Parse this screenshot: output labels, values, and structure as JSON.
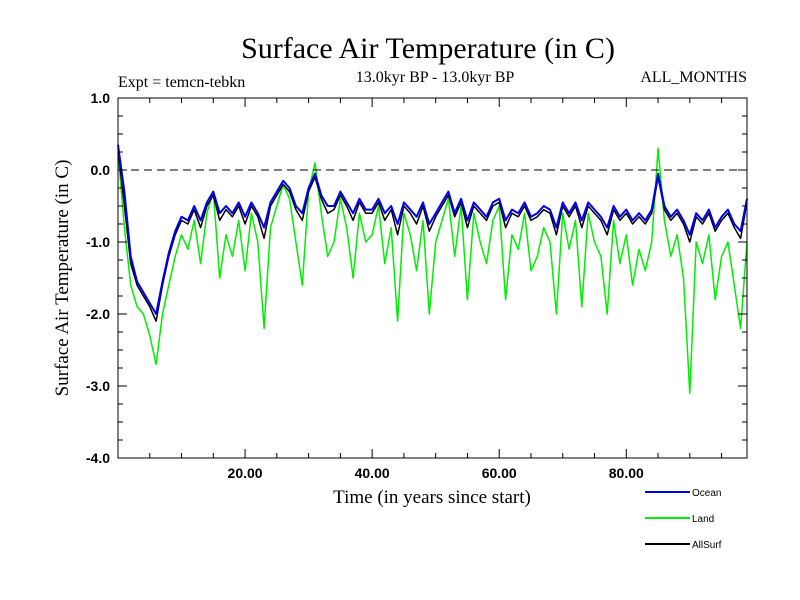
{
  "chart_data": {
    "type": "line",
    "title": "Surface Air Temperature (in C)",
    "subtitle": "13.0kyr BP - 13.0kyr BP",
    "left_annotation": "Expt = temcn-tebkn",
    "right_annotation": "ALL_MONTHS",
    "xlabel": "Time (in years since start)",
    "ylabel": "Surface Air Temperature (in C)",
    "xlim": [
      0,
      99
    ],
    "ylim": [
      -4.0,
      1.0
    ],
    "x_ticks": [
      20,
      40,
      60,
      80
    ],
    "x_tick_labels": [
      "20.00",
      "40.00",
      "60.00",
      "80.00"
    ],
    "y_ticks": [
      1.0,
      0.0,
      -1.0,
      -2.0,
      -3.0,
      -4.0
    ],
    "y_tick_labels": [
      "1.0",
      "0.0",
      "-1.0",
      "-2.0",
      "-3.0",
      "-4.0"
    ],
    "reference_line": {
      "y": 0.0,
      "style": "dashed"
    },
    "legend_position": "bottom-right",
    "series": [
      {
        "name": "Land",
        "color": "#00ee00",
        "x": [
          0,
          1,
          2,
          3,
          4,
          5,
          6,
          7,
          8,
          9,
          10,
          11,
          12,
          13,
          14,
          15,
          16,
          17,
          18,
          19,
          20,
          21,
          22,
          23,
          24,
          25,
          26,
          27,
          28,
          29,
          30,
          31,
          32,
          33,
          34,
          35,
          36,
          37,
          38,
          39,
          40,
          41,
          42,
          43,
          44,
          45,
          46,
          47,
          48,
          49,
          50,
          51,
          52,
          53,
          54,
          55,
          56,
          57,
          58,
          59,
          60,
          61,
          62,
          63,
          64,
          65,
          66,
          67,
          68,
          69,
          70,
          71,
          72,
          73,
          74,
          75,
          76,
          77,
          78,
          79,
          80,
          81,
          82,
          83,
          84,
          85,
          86,
          87,
          88,
          89,
          90,
          91,
          92,
          93,
          94,
          95,
          96,
          97,
          98,
          99
        ],
        "values": [
          0.25,
          -0.8,
          -1.6,
          -1.9,
          -2.0,
          -2.3,
          -2.7,
          -2.0,
          -1.6,
          -1.2,
          -0.9,
          -1.1,
          -0.7,
          -1.3,
          -0.6,
          -0.3,
          -1.5,
          -0.9,
          -1.2,
          -0.7,
          -1.4,
          -0.6,
          -1.0,
          -2.2,
          -0.8,
          -0.5,
          -0.2,
          -0.4,
          -1.0,
          -1.6,
          -0.3,
          0.1,
          -0.6,
          -1.2,
          -1.0,
          -0.4,
          -0.8,
          -1.5,
          -0.6,
          -1.0,
          -0.9,
          -0.5,
          -1.3,
          -0.8,
          -2.1,
          -0.6,
          -0.9,
          -1.4,
          -0.7,
          -2.0,
          -1.0,
          -0.7,
          -0.4,
          -1.2,
          -0.5,
          -1.8,
          -0.6,
          -1.0,
          -1.3,
          -0.7,
          -0.5,
          -1.8,
          -0.9,
          -1.1,
          -0.6,
          -1.4,
          -1.2,
          -0.8,
          -1.0,
          -2.0,
          -0.6,
          -1.1,
          -0.7,
          -1.9,
          -0.6,
          -1.0,
          -1.2,
          -2.0,
          -0.7,
          -1.3,
          -0.9,
          -1.6,
          -1.1,
          -1.4,
          -1.0,
          0.3,
          -0.7,
          -1.2,
          -0.9,
          -1.5,
          -3.1,
          -1.0,
          -1.3,
          -0.9,
          -1.8,
          -1.2,
          -1.0,
          -1.6,
          -2.2,
          -1.0
        ]
      },
      {
        "name": "AllSurf",
        "color": "#000000",
        "x": [
          0,
          1,
          2,
          3,
          4,
          5,
          6,
          7,
          8,
          9,
          10,
          11,
          12,
          13,
          14,
          15,
          16,
          17,
          18,
          19,
          20,
          21,
          22,
          23,
          24,
          25,
          26,
          27,
          28,
          29,
          30,
          31,
          32,
          33,
          34,
          35,
          36,
          37,
          38,
          39,
          40,
          41,
          42,
          43,
          44,
          45,
          46,
          47,
          48,
          49,
          50,
          51,
          52,
          53,
          54,
          55,
          56,
          57,
          58,
          59,
          60,
          61,
          62,
          63,
          64,
          65,
          66,
          67,
          68,
          69,
          70,
          71,
          72,
          73,
          74,
          75,
          76,
          77,
          78,
          79,
          80,
          81,
          82,
          83,
          84,
          85,
          86,
          87,
          88,
          89,
          90,
          91,
          92,
          93,
          94,
          95,
          96,
          97,
          98,
          99
        ],
        "values": [
          0.3,
          -0.5,
          -1.3,
          -1.6,
          -1.75,
          -1.9,
          -2.1,
          -1.6,
          -1.2,
          -0.9,
          -0.7,
          -0.75,
          -0.55,
          -0.8,
          -0.5,
          -0.35,
          -0.7,
          -0.55,
          -0.65,
          -0.5,
          -0.75,
          -0.5,
          -0.65,
          -0.95,
          -0.5,
          -0.35,
          -0.2,
          -0.3,
          -0.55,
          -0.7,
          -0.3,
          -0.1,
          -0.4,
          -0.6,
          -0.55,
          -0.35,
          -0.5,
          -0.7,
          -0.45,
          -0.6,
          -0.6,
          -0.45,
          -0.7,
          -0.55,
          -0.9,
          -0.5,
          -0.6,
          -0.75,
          -0.5,
          -0.85,
          -0.65,
          -0.5,
          -0.35,
          -0.65,
          -0.45,
          -0.8,
          -0.5,
          -0.6,
          -0.7,
          -0.5,
          -0.45,
          -0.8,
          -0.6,
          -0.65,
          -0.5,
          -0.7,
          -0.65,
          -0.55,
          -0.6,
          -0.9,
          -0.5,
          -0.65,
          -0.5,
          -0.8,
          -0.5,
          -0.6,
          -0.7,
          -0.9,
          -0.55,
          -0.7,
          -0.6,
          -0.75,
          -0.65,
          -0.75,
          -0.6,
          -0.1,
          -0.55,
          -0.7,
          -0.6,
          -0.75,
          -1.0,
          -0.65,
          -0.75,
          -0.6,
          -0.85,
          -0.7,
          -0.6,
          -0.8,
          -0.95,
          -0.45
        ]
      },
      {
        "name": "Ocean",
        "color": "#0000ee",
        "x": [
          0,
          1,
          2,
          3,
          4,
          5,
          6,
          7,
          8,
          9,
          10,
          11,
          12,
          13,
          14,
          15,
          16,
          17,
          18,
          19,
          20,
          21,
          22,
          23,
          24,
          25,
          26,
          27,
          28,
          29,
          30,
          31,
          32,
          33,
          34,
          35,
          36,
          37,
          38,
          39,
          40,
          41,
          42,
          43,
          44,
          45,
          46,
          47,
          48,
          49,
          50,
          51,
          52,
          53,
          54,
          55,
          56,
          57,
          58,
          59,
          60,
          61,
          62,
          63,
          64,
          65,
          66,
          67,
          68,
          69,
          70,
          71,
          72,
          73,
          74,
          75,
          76,
          77,
          78,
          79,
          80,
          81,
          82,
          83,
          84,
          85,
          86,
          87,
          88,
          89,
          90,
          91,
          92,
          93,
          94,
          95,
          96,
          97,
          98,
          99
        ],
        "values": [
          0.35,
          -0.3,
          -1.2,
          -1.55,
          -1.7,
          -1.85,
          -2.0,
          -1.55,
          -1.15,
          -0.85,
          -0.65,
          -0.7,
          -0.5,
          -0.7,
          -0.45,
          -0.3,
          -0.6,
          -0.5,
          -0.6,
          -0.45,
          -0.65,
          -0.45,
          -0.6,
          -0.8,
          -0.45,
          -0.3,
          -0.15,
          -0.25,
          -0.5,
          -0.6,
          -0.25,
          -0.05,
          -0.35,
          -0.5,
          -0.5,
          -0.3,
          -0.45,
          -0.6,
          -0.4,
          -0.55,
          -0.55,
          -0.4,
          -0.6,
          -0.5,
          -0.75,
          -0.45,
          -0.55,
          -0.65,
          -0.45,
          -0.75,
          -0.6,
          -0.45,
          -0.3,
          -0.6,
          -0.4,
          -0.7,
          -0.45,
          -0.55,
          -0.65,
          -0.45,
          -0.4,
          -0.7,
          -0.55,
          -0.6,
          -0.45,
          -0.65,
          -0.6,
          -0.5,
          -0.55,
          -0.8,
          -0.45,
          -0.6,
          -0.45,
          -0.7,
          -0.45,
          -0.55,
          -0.65,
          -0.8,
          -0.5,
          -0.65,
          -0.55,
          -0.7,
          -0.6,
          -0.7,
          -0.55,
          -0.05,
          -0.5,
          -0.65,
          -0.55,
          -0.7,
          -0.9,
          -0.6,
          -0.7,
          -0.55,
          -0.8,
          -0.65,
          -0.55,
          -0.75,
          -0.85,
          -0.4
        ]
      }
    ],
    "legend_order": [
      "Ocean",
      "Land",
      "AllSurf"
    ]
  }
}
